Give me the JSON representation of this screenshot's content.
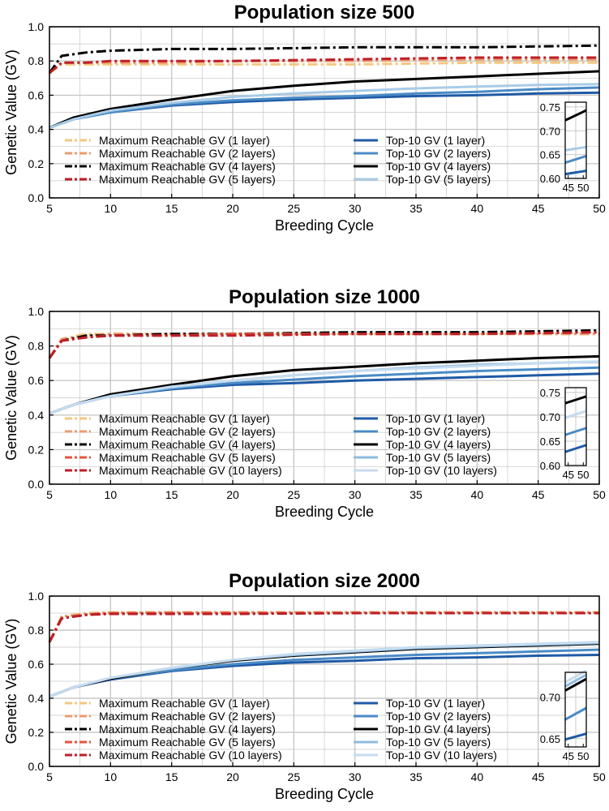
{
  "chart_data": [
    {
      "type": "line",
      "title": "Population size 500",
      "xlabel": "Breeding Cycle",
      "ylabel": "Genetic Value (GV)",
      "xlim": [
        5,
        50
      ],
      "ylim": [
        0,
        1
      ],
      "xticks": [
        "5",
        "10",
        "15",
        "20",
        "25",
        "30",
        "35",
        "40",
        "45",
        "50"
      ],
      "yticks": [
        "0.0",
        "0.2",
        "0.4",
        "0.6",
        "0.8",
        "1.0"
      ],
      "grid": true,
      "legend_left": [
        "Maximum Reachable GV (1 layer)",
        "Maximum Reachable GV (2 layers)",
        "Maximum Reachable GV (4 layers)",
        "Maximum Reachable GV (5 layers)"
      ],
      "legend_right": [
        "Top-10 GV (1 layer)",
        "Top-10 GV (2 layers)",
        "Top-10 GV (4 layers)",
        "Top-10 GV (5 layers)"
      ],
      "series": [
        {
          "name": "Maximum Reachable GV (1 layer)",
          "kind": "max",
          "color": "#f4c77f",
          "x": [
            5,
            6,
            8,
            10,
            15,
            20,
            30,
            40,
            50
          ],
          "values": [
            0.73,
            0.78,
            0.78,
            0.78,
            0.78,
            0.78,
            0.78,
            0.79,
            0.79
          ]
        },
        {
          "name": "Maximum Reachable GV (2 layers)",
          "kind": "max",
          "color": "#ef9a6c",
          "x": [
            5,
            6,
            8,
            10,
            15,
            20,
            30,
            40,
            50
          ],
          "values": [
            0.73,
            0.79,
            0.79,
            0.79,
            0.79,
            0.8,
            0.8,
            0.81,
            0.81
          ]
        },
        {
          "name": "Maximum Reachable GV (4 layers)",
          "kind": "max",
          "color": "#000000",
          "x": [
            5,
            6,
            8,
            10,
            15,
            20,
            30,
            40,
            50
          ],
          "values": [
            0.73,
            0.83,
            0.85,
            0.86,
            0.87,
            0.87,
            0.88,
            0.88,
            0.89
          ]
        },
        {
          "name": "Maximum Reachable GV (5 layers)",
          "kind": "max",
          "color": "#bd1f28",
          "x": [
            5,
            6,
            8,
            10,
            15,
            20,
            30,
            40,
            50
          ],
          "values": [
            0.73,
            0.79,
            0.79,
            0.8,
            0.8,
            0.8,
            0.81,
            0.82,
            0.82
          ]
        },
        {
          "name": "Top-10 GV (1 layer)",
          "kind": "top",
          "color": "#1f5aa6",
          "x": [
            5,
            7,
            10,
            15,
            20,
            25,
            30,
            35,
            40,
            45,
            50
          ],
          "values": [
            0.41,
            0.46,
            0.5,
            0.54,
            0.56,
            0.575,
            0.585,
            0.595,
            0.6,
            0.61,
            0.615
          ]
        },
        {
          "name": "Top-10 GV (2 layers)",
          "kind": "top",
          "color": "#4a8bc6",
          "x": [
            5,
            7,
            10,
            15,
            20,
            25,
            30,
            35,
            40,
            45,
            50
          ],
          "values": [
            0.41,
            0.46,
            0.5,
            0.545,
            0.57,
            0.585,
            0.595,
            0.61,
            0.62,
            0.635,
            0.645
          ]
        },
        {
          "name": "Top-10 GV (4 layers)",
          "kind": "top",
          "color": "#000000",
          "x": [
            5,
            7,
            10,
            15,
            20,
            25,
            30,
            35,
            40,
            45,
            50
          ],
          "values": [
            0.41,
            0.47,
            0.52,
            0.575,
            0.625,
            0.655,
            0.68,
            0.695,
            0.71,
            0.725,
            0.74
          ]
        },
        {
          "name": "Top-10 GV (5 layers)",
          "kind": "top",
          "color": "#a9cbe6",
          "x": [
            5,
            7,
            10,
            15,
            20,
            25,
            30,
            35,
            40,
            45,
            50
          ],
          "values": [
            0.41,
            0.46,
            0.51,
            0.555,
            0.59,
            0.61,
            0.625,
            0.64,
            0.65,
            0.66,
            0.665
          ]
        }
      ],
      "inset": {
        "xlim": [
          44,
          51
        ],
        "ylim": [
          0.6,
          0.76
        ],
        "xticks": [
          "45",
          "50"
        ],
        "yticks": [
          "0.60",
          "0.65",
          "0.70",
          "0.75"
        ]
      }
    },
    {
      "type": "line",
      "title": "Population size 1000",
      "xlabel": "Breeding Cycle",
      "ylabel": "Genetic Value (GV)",
      "xlim": [
        5,
        50
      ],
      "ylim": [
        0,
        1
      ],
      "xticks": [
        "5",
        "10",
        "15",
        "20",
        "25",
        "30",
        "35",
        "40",
        "45",
        "50"
      ],
      "yticks": [
        "0.0",
        "0.2",
        "0.4",
        "0.6",
        "0.8",
        "1.0"
      ],
      "grid": true,
      "legend_left": [
        "Maximum Reachable GV (1 layer)",
        "Maximum Reachable GV (2 layers)",
        "Maximum Reachable GV (4 layers)",
        "Maximum Reachable GV (5 layers)",
        "Maximum Reachable GV (10 layers)"
      ],
      "legend_right": [
        "Top-10 GV (1 layer)",
        "Top-10 GV (2 layers)",
        "Top-10 GV (4 layers)",
        "Top-10 GV (5 layers)",
        "Top-10 GV (10 layers)"
      ],
      "series": [
        {
          "name": "Maximum Reachable GV (1 layer)",
          "kind": "max",
          "color": "#f4c77f",
          "x": [
            5,
            6,
            8,
            10,
            15,
            20,
            30,
            40,
            50
          ],
          "values": [
            0.73,
            0.84,
            0.87,
            0.87,
            0.87,
            0.87,
            0.87,
            0.87,
            0.87
          ]
        },
        {
          "name": "Maximum Reachable GV (2 layers)",
          "kind": "max",
          "color": "#ef9a6c",
          "x": [
            5,
            6,
            8,
            10,
            15,
            20,
            30,
            40,
            50
          ],
          "values": [
            0.73,
            0.84,
            0.86,
            0.87,
            0.87,
            0.87,
            0.87,
            0.87,
            0.87
          ]
        },
        {
          "name": "Maximum Reachable GV (4 layers)",
          "kind": "max",
          "color": "#000000",
          "x": [
            5,
            6,
            8,
            10,
            15,
            20,
            30,
            40,
            50
          ],
          "values": [
            0.73,
            0.83,
            0.86,
            0.86,
            0.87,
            0.87,
            0.88,
            0.88,
            0.89
          ]
        },
        {
          "name": "Maximum Reachable GV (5 layers)",
          "kind": "max",
          "color": "#e3553e",
          "x": [
            5,
            6,
            8,
            10,
            15,
            20,
            30,
            40,
            50
          ],
          "values": [
            0.73,
            0.83,
            0.85,
            0.86,
            0.86,
            0.87,
            0.87,
            0.87,
            0.88
          ]
        },
        {
          "name": "Maximum Reachable GV (10 layers)",
          "kind": "max",
          "color": "#bd1f28",
          "x": [
            5,
            6,
            8,
            10,
            15,
            20,
            30,
            40,
            50
          ],
          "values": [
            0.73,
            0.83,
            0.85,
            0.86,
            0.86,
            0.86,
            0.87,
            0.87,
            0.88
          ]
        },
        {
          "name": "Top-10 GV (1 layer)",
          "kind": "top",
          "color": "#1f5aa6",
          "x": [
            5,
            7,
            10,
            15,
            20,
            25,
            30,
            35,
            40,
            45,
            50
          ],
          "values": [
            0.41,
            0.46,
            0.51,
            0.55,
            0.575,
            0.585,
            0.6,
            0.61,
            0.62,
            0.63,
            0.64
          ]
        },
        {
          "name": "Top-10 GV (2 layers)",
          "kind": "top",
          "color": "#4a8bc6",
          "x": [
            5,
            7,
            10,
            15,
            20,
            25,
            30,
            35,
            40,
            45,
            50
          ],
          "values": [
            0.41,
            0.46,
            0.51,
            0.555,
            0.585,
            0.605,
            0.625,
            0.64,
            0.655,
            0.665,
            0.675
          ]
        },
        {
          "name": "Top-10 GV (4 layers)",
          "kind": "top",
          "color": "#000000",
          "x": [
            5,
            7,
            10,
            15,
            20,
            25,
            30,
            35,
            40,
            45,
            50
          ],
          "values": [
            0.41,
            0.46,
            0.52,
            0.575,
            0.625,
            0.66,
            0.68,
            0.7,
            0.715,
            0.73,
            0.74
          ]
        },
        {
          "name": "Top-10 GV (5 layers)",
          "kind": "top",
          "color": "#8fbbe0",
          "x": [
            5,
            7,
            10,
            15,
            20,
            25,
            30,
            35,
            40,
            45,
            50
          ],
          "values": [
            0.41,
            0.46,
            0.51,
            0.56,
            0.6,
            0.63,
            0.655,
            0.675,
            0.69,
            0.7,
            0.71
          ]
        },
        {
          "name": "Top-10 GV (10 layers)",
          "kind": "top",
          "color": "#c6dcef",
          "x": [
            5,
            7,
            10,
            15,
            20,
            25,
            30,
            35,
            40,
            45,
            50
          ],
          "values": [
            0.41,
            0.46,
            0.51,
            0.565,
            0.6,
            0.63,
            0.655,
            0.67,
            0.685,
            0.7,
            0.71
          ]
        }
      ],
      "inset": {
        "xlim": [
          44,
          51
        ],
        "ylim": [
          0.6,
          0.76
        ],
        "xticks": [
          "45",
          "50"
        ],
        "yticks": [
          "0.60",
          "0.65",
          "0.70",
          "0.75"
        ]
      }
    },
    {
      "type": "line",
      "title": "Population size 2000",
      "xlabel": "Breeding Cycle",
      "ylabel": "Genetic Value (GV)",
      "xlim": [
        5,
        50
      ],
      "ylim": [
        0,
        1
      ],
      "xticks": [
        "5",
        "10",
        "15",
        "20",
        "25",
        "30",
        "35",
        "40",
        "45",
        "50"
      ],
      "yticks": [
        "0.0",
        "0.2",
        "0.4",
        "0.6",
        "0.8",
        "1.0"
      ],
      "grid": true,
      "legend_left": [
        "Maximum Reachable GV (1 layer)",
        "Maximum Reachable GV (2 layers)",
        "Maximum Reachable GV (4 layers)",
        "Maximum Reachable GV (5 layers)",
        "Maximum Reachable GV (10 layers)"
      ],
      "legend_right": [
        "Top-10 GV (1 layer)",
        "Top-10 GV (2 layers)",
        "Top-10 GV (4 layers)",
        "Top-10 GV (5 layers)",
        "Top-10 GV (10 layers)"
      ],
      "series": [
        {
          "name": "Maximum Reachable GV (1 layer)",
          "kind": "max",
          "color": "#f4c77f",
          "x": [
            5,
            6,
            8,
            10,
            15,
            20,
            30,
            40,
            50
          ],
          "values": [
            0.73,
            0.88,
            0.9,
            0.905,
            0.905,
            0.905,
            0.905,
            0.905,
            0.905
          ]
        },
        {
          "name": "Maximum Reachable GV (2 layers)",
          "kind": "max",
          "color": "#ef9a6c",
          "x": [
            5,
            6,
            8,
            10,
            15,
            20,
            30,
            40,
            50
          ],
          "values": [
            0.73,
            0.88,
            0.895,
            0.9,
            0.905,
            0.905,
            0.905,
            0.905,
            0.905
          ]
        },
        {
          "name": "Maximum Reachable GV (4 layers)",
          "kind": "max",
          "color": "#000000",
          "x": [
            5,
            6,
            8,
            10,
            15,
            20,
            30,
            40,
            50
          ],
          "values": [
            0.73,
            0.87,
            0.89,
            0.9,
            0.9,
            0.9,
            0.9,
            0.9,
            0.9
          ]
        },
        {
          "name": "Maximum Reachable GV (5 layers)",
          "kind": "max",
          "color": "#e3553e",
          "x": [
            5,
            6,
            8,
            10,
            15,
            20,
            30,
            40,
            50
          ],
          "values": [
            0.73,
            0.87,
            0.89,
            0.9,
            0.9,
            0.9,
            0.9,
            0.9,
            0.9
          ]
        },
        {
          "name": "Maximum Reachable GV (10 layers)",
          "kind": "max",
          "color": "#bd1f28",
          "x": [
            5,
            6,
            8,
            10,
            15,
            20,
            30,
            40,
            50
          ],
          "values": [
            0.73,
            0.87,
            0.89,
            0.895,
            0.895,
            0.895,
            0.9,
            0.9,
            0.9
          ]
        },
        {
          "name": "Top-10 GV (1 layer)",
          "kind": "top",
          "color": "#1f5aa6",
          "x": [
            5,
            7,
            10,
            15,
            20,
            25,
            30,
            35,
            40,
            45,
            50
          ],
          "values": [
            0.41,
            0.465,
            0.51,
            0.56,
            0.59,
            0.61,
            0.62,
            0.635,
            0.64,
            0.65,
            0.655
          ]
        },
        {
          "name": "Top-10 GV (2 layers)",
          "kind": "top",
          "color": "#4a8bc6",
          "x": [
            5,
            7,
            10,
            15,
            20,
            25,
            30,
            35,
            40,
            45,
            50
          ],
          "values": [
            0.41,
            0.465,
            0.515,
            0.565,
            0.6,
            0.625,
            0.64,
            0.655,
            0.665,
            0.675,
            0.685
          ]
        },
        {
          "name": "Top-10 GV (4 layers)",
          "kind": "top",
          "color": "#000000",
          "x": [
            5,
            7,
            10,
            15,
            20,
            25,
            30,
            35,
            40,
            45,
            50
          ],
          "values": [
            0.41,
            0.465,
            0.515,
            0.575,
            0.62,
            0.65,
            0.67,
            0.69,
            0.7,
            0.71,
            0.72
          ]
        },
        {
          "name": "Top-10 GV (5 layers)",
          "kind": "top",
          "color": "#8fbbe0",
          "x": [
            5,
            7,
            10,
            15,
            20,
            25,
            30,
            35,
            40,
            45,
            50
          ],
          "values": [
            0.41,
            0.465,
            0.52,
            0.575,
            0.625,
            0.655,
            0.675,
            0.695,
            0.705,
            0.715,
            0.725
          ]
        },
        {
          "name": "Top-10 GV (10 layers)",
          "kind": "top",
          "color": "#c6dcef",
          "x": [
            5,
            7,
            10,
            15,
            20,
            25,
            30,
            35,
            40,
            45,
            50
          ],
          "values": [
            0.41,
            0.465,
            0.52,
            0.58,
            0.625,
            0.66,
            0.68,
            0.7,
            0.71,
            0.72,
            0.73
          ]
        }
      ],
      "inset": {
        "xlim": [
          44,
          51
        ],
        "ylim": [
          0.64,
          0.73
        ],
        "xticks": [
          "45",
          "50"
        ],
        "yticks": [
          "0.65",
          "0.70"
        ]
      }
    }
  ]
}
